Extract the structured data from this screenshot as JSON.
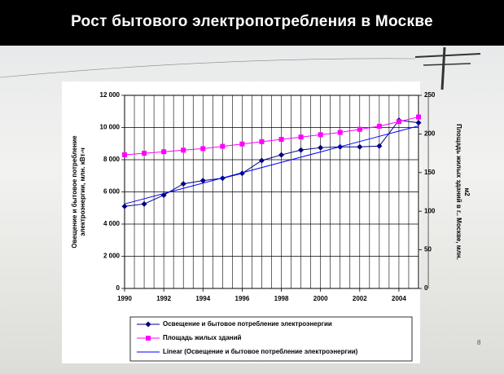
{
  "slide": {
    "title": "Рост бытового электропотребления в Москве",
    "page_number": "8"
  },
  "chart_data": {
    "type": "line",
    "ylabel": [
      "Овещение и бытовое потребление",
      "электроэнергии, млн. кВт-ч"
    ],
    "y2label": [
      "Площадь жилых зданий в г.. Москве, млн.",
      "м2"
    ],
    "x": [
      1990,
      1991,
      1992,
      1993,
      1994,
      1995,
      1996,
      1997,
      1998,
      1999,
      2000,
      2001,
      2002,
      2003,
      2004,
      2005
    ],
    "xlim": [
      1990,
      2005
    ],
    "xticks": [
      1990,
      1992,
      1994,
      1996,
      1998,
      2000,
      2002,
      2004
    ],
    "ylim": [
      0,
      12000
    ],
    "yticks": [
      0,
      {
        "value": 2000,
        "label": "2 000"
      },
      {
        "value": 4000,
        "label": "4 000"
      },
      {
        "value": 6000,
        "label": "6 000"
      },
      {
        "value": 8000,
        "label": "8 000"
      },
      {
        "value": 10000,
        "label": "10 000"
      },
      {
        "value": 12000,
        "label": "12 000"
      }
    ],
    "y2lim": [
      0,
      250
    ],
    "y2ticks": [
      0,
      50,
      100,
      150,
      200,
      250
    ],
    "grid": true,
    "series": [
      {
        "name": "Освещение и бытовое потребление электроэнергии",
        "color": "#000080",
        "marker": "diamond",
        "values": [
          5100,
          5250,
          5800,
          6500,
          6700,
          6850,
          7150,
          7950,
          8300,
          8600,
          8750,
          8800,
          8800,
          8850,
          10450,
          10300
        ]
      },
      {
        "name": "Площадь жилых зданий",
        "color": "#ff00ff",
        "marker": "square",
        "axis": "y2",
        "values": [
          173,
          175,
          177,
          179,
          181,
          184,
          187,
          190,
          193,
          196,
          199,
          202,
          206,
          210,
          216,
          222
        ]
      },
      {
        "name": "Linear (Освещение и бытовое потребление электроэнергии)",
        "color": "#0000ff",
        "marker": "none",
        "values": [
          5250,
          5573,
          5897,
          6220,
          6543,
          6867,
          7190,
          7513,
          7837,
          8160,
          8483,
          8807,
          9130,
          9453,
          9777,
          10100
        ]
      }
    ]
  }
}
